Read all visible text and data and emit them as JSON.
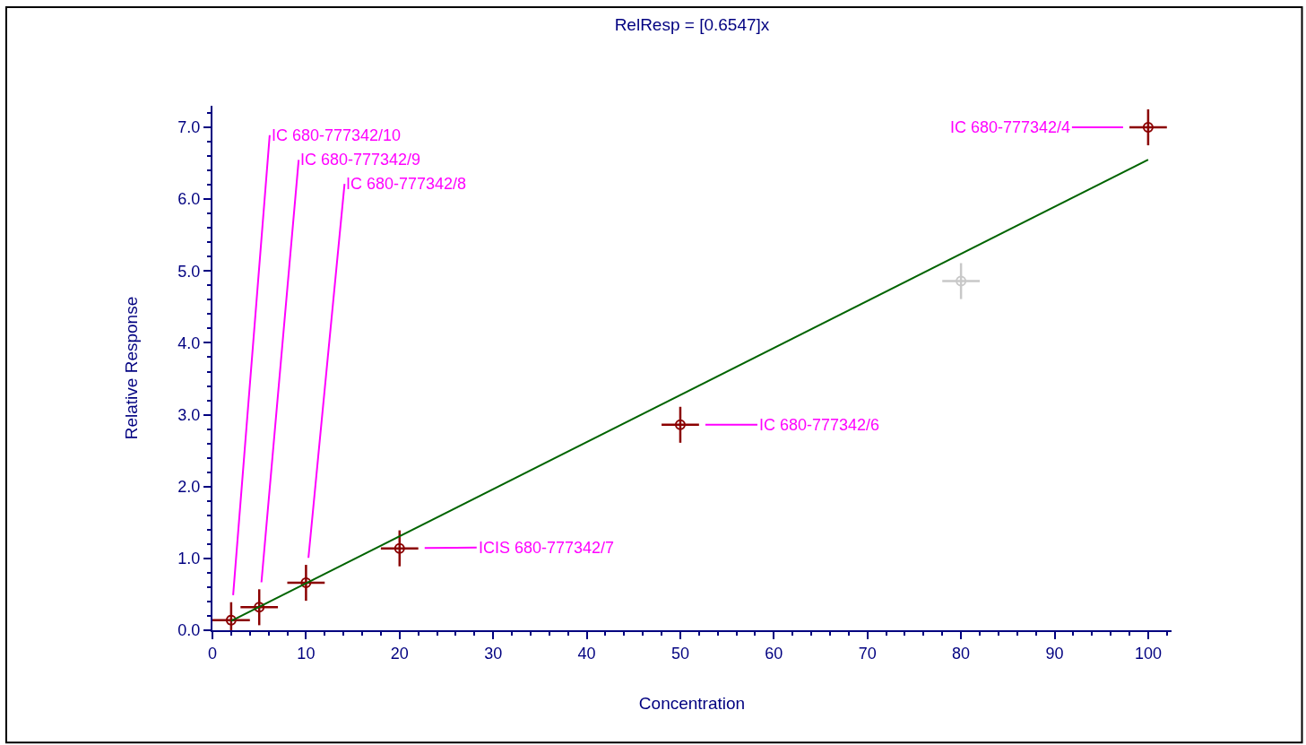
{
  "chart_data": {
    "type": "scatter",
    "title": "RelResp = [0.6547]x",
    "xlabel": "Concentration",
    "ylabel": "Relative Response",
    "xlim": [
      0,
      102.5
    ],
    "xticks": [
      0,
      10,
      20,
      30,
      40,
      50,
      60,
      70,
      80,
      90,
      100
    ],
    "ylim": [
      0,
      7.3
    ],
    "yticks": [
      {
        "value": 0,
        "label": "0.0"
      },
      {
        "value": 1,
        "label": "1.0"
      },
      {
        "value": 2,
        "label": "2.0"
      },
      {
        "value": 3,
        "label": "3.0"
      },
      {
        "value": 4,
        "label": "4.0"
      },
      {
        "value": 5,
        "label": "5.0"
      },
      {
        "value": 6,
        "label": "6.0"
      },
      {
        "value": 7,
        "label": "7.0"
      }
    ],
    "marker": "circle",
    "series": [
      {
        "color": "#8b0000",
        "x": [
          2,
          5,
          10,
          20,
          50,
          100
        ],
        "values": [
          0.14,
          0.32,
          0.66,
          1.14,
          2.86,
          7.0
        ],
        "errors": [
          0.25,
          0.25,
          0.25,
          0.25,
          0.25,
          0.25
        ],
        "xerrors": [
          2,
          2,
          2,
          2,
          2,
          2
        ]
      },
      {
        "color": "#c8c8c8",
        "x": [
          80
        ],
        "values": [
          4.86
        ],
        "errors": [
          0.25
        ],
        "xerrors": [
          2
        ]
      },
      {
        "type": "line",
        "color": "#006400",
        "x": [
          2,
          100
        ],
        "values": [
          0.13,
          6.55
        ],
        "line_style": "solid",
        "marker": "none"
      }
    ],
    "annotations": [
      {
        "text": "IC 680-777342/10",
        "x": 2,
        "y": 0.14
      },
      {
        "text": "IC 680-777342/9",
        "x": 5,
        "y": 0.32
      },
      {
        "text": "IC 680-777342/8",
        "x": 10,
        "y": 0.66
      },
      {
        "text": "ICIS 680-777342/7",
        "x": 20,
        "y": 1.14
      },
      {
        "text": "IC 680-777342/6",
        "x": 50,
        "y": 2.86
      },
      {
        "text": "IC 680-777342/4",
        "x": 100,
        "y": 7.0
      }
    ]
  }
}
